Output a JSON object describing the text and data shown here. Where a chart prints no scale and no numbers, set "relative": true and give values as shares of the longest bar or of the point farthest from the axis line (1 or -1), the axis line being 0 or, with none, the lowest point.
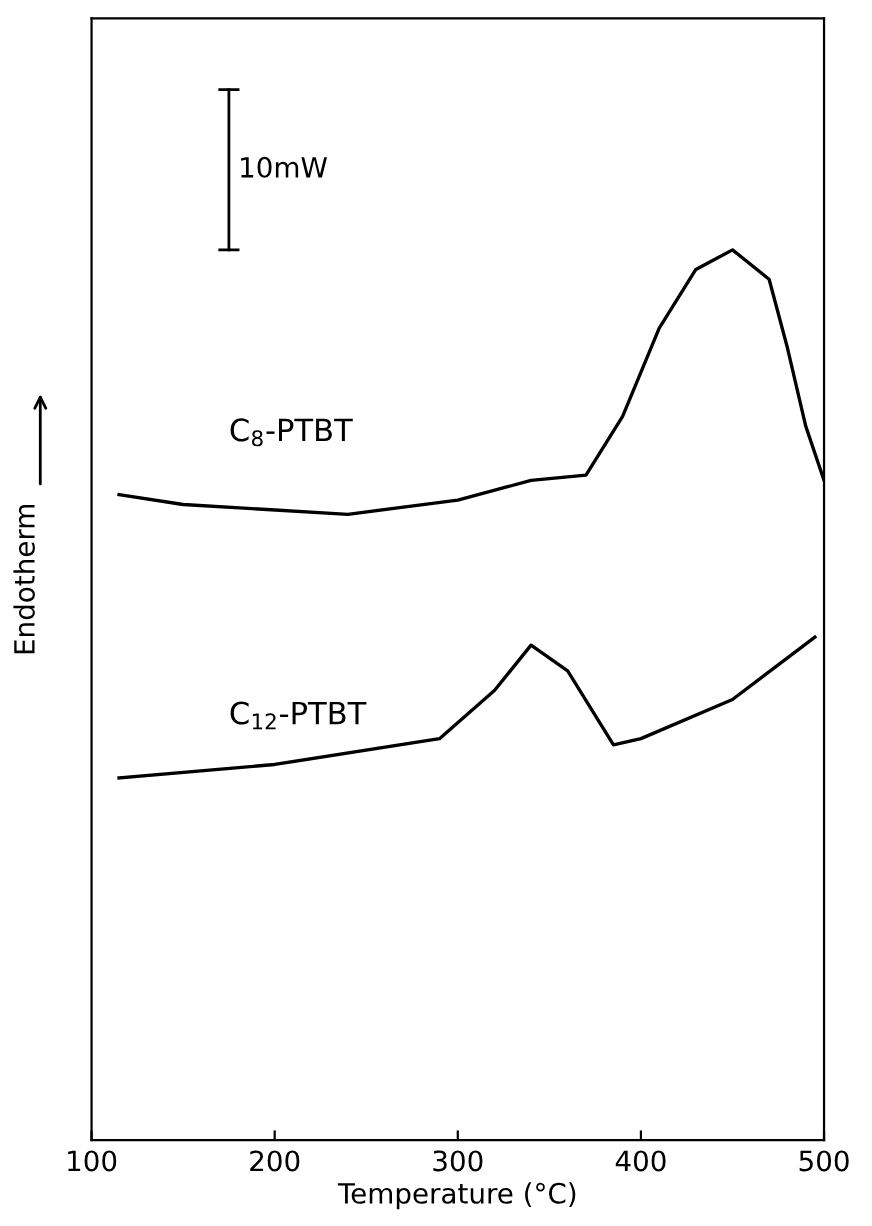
{
  "chart_data": {
    "type": "line",
    "relative": true,
    "xlabel": "Temperature (°C)",
    "ylabel": "Endotherm",
    "xlim": [
      100,
      500
    ],
    "xticks": [
      100,
      200,
      300,
      400,
      500
    ],
    "grid": false,
    "legend": false,
    "tick_labels": "x",
    "marker": "none",
    "line_style": "solid",
    "annotations": [
      "10mW"
    ],
    "series": [
      {
        "name": "C$_{8}$-PTBT",
        "color": "#000000",
        "x": [
          115,
          150,
          240,
          300,
          340,
          370,
          390,
          410,
          430,
          450,
          470,
          480,
          490,
          500
        ],
        "values": [
          0.725,
          0.714,
          0.703,
          0.719,
          0.741,
          0.747,
          0.813,
          0.912,
          0.978,
          1,
          0.967,
          0.89,
          0.802,
          0.741
        ]
      },
      {
        "name": "C$_{12}$-PTBT",
        "color": "#000000",
        "x": [
          115,
          200,
          290,
          320,
          340,
          360,
          385,
          400,
          450,
          495
        ],
        "values": [
          0.407,
          0.422,
          0.451,
          0.505,
          0.556,
          0.527,
          0.444,
          0.451,
          0.495,
          0.565
        ]
      }
    ]
  }
}
